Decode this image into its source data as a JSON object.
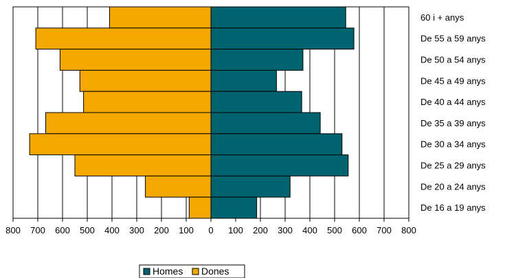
{
  "chart_data": {
    "type": "bar",
    "orientation": "horizontal",
    "subtype": "population-pyramid",
    "categories": [
      "60 i + anys",
      "De 55 a 59 anys",
      "De 50 a 54 anys",
      "De 45 a 49 anys",
      "De 40 a 44 anys",
      "De 35 a 39 anys",
      "De 30 a 34 anys",
      "De 25 a 29 anys",
      "De 20 a 24 anys",
      "De 16 a 19 anys"
    ],
    "series": [
      {
        "name": "Homes",
        "side": "right",
        "color": "#006470",
        "values": [
          545,
          578,
          372,
          265,
          367,
          442,
          530,
          555,
          320,
          185
        ]
      },
      {
        "name": "Dones",
        "side": "left",
        "color": "#F5A800",
        "values": [
          410,
          708,
          610,
          530,
          515,
          668,
          733,
          550,
          265,
          88
        ]
      }
    ],
    "xlim": [
      -800,
      800
    ],
    "x_ticks": [
      -800,
      -700,
      -600,
      -500,
      -400,
      -300,
      -200,
      -100,
      0,
      100,
      200,
      300,
      400,
      500,
      600,
      700,
      800
    ],
    "x_tick_labels": [
      "800",
      "700",
      "600",
      "500",
      "400",
      "300",
      "200",
      "100",
      "0",
      "100",
      "200",
      "300",
      "400",
      "500",
      "600",
      "700",
      "800"
    ],
    "title": "",
    "xlabel": "",
    "ylabel": "",
    "grid": "vertical",
    "legend": {
      "placement": "bottom-center",
      "entries": [
        "Homes",
        "Dones"
      ]
    }
  }
}
